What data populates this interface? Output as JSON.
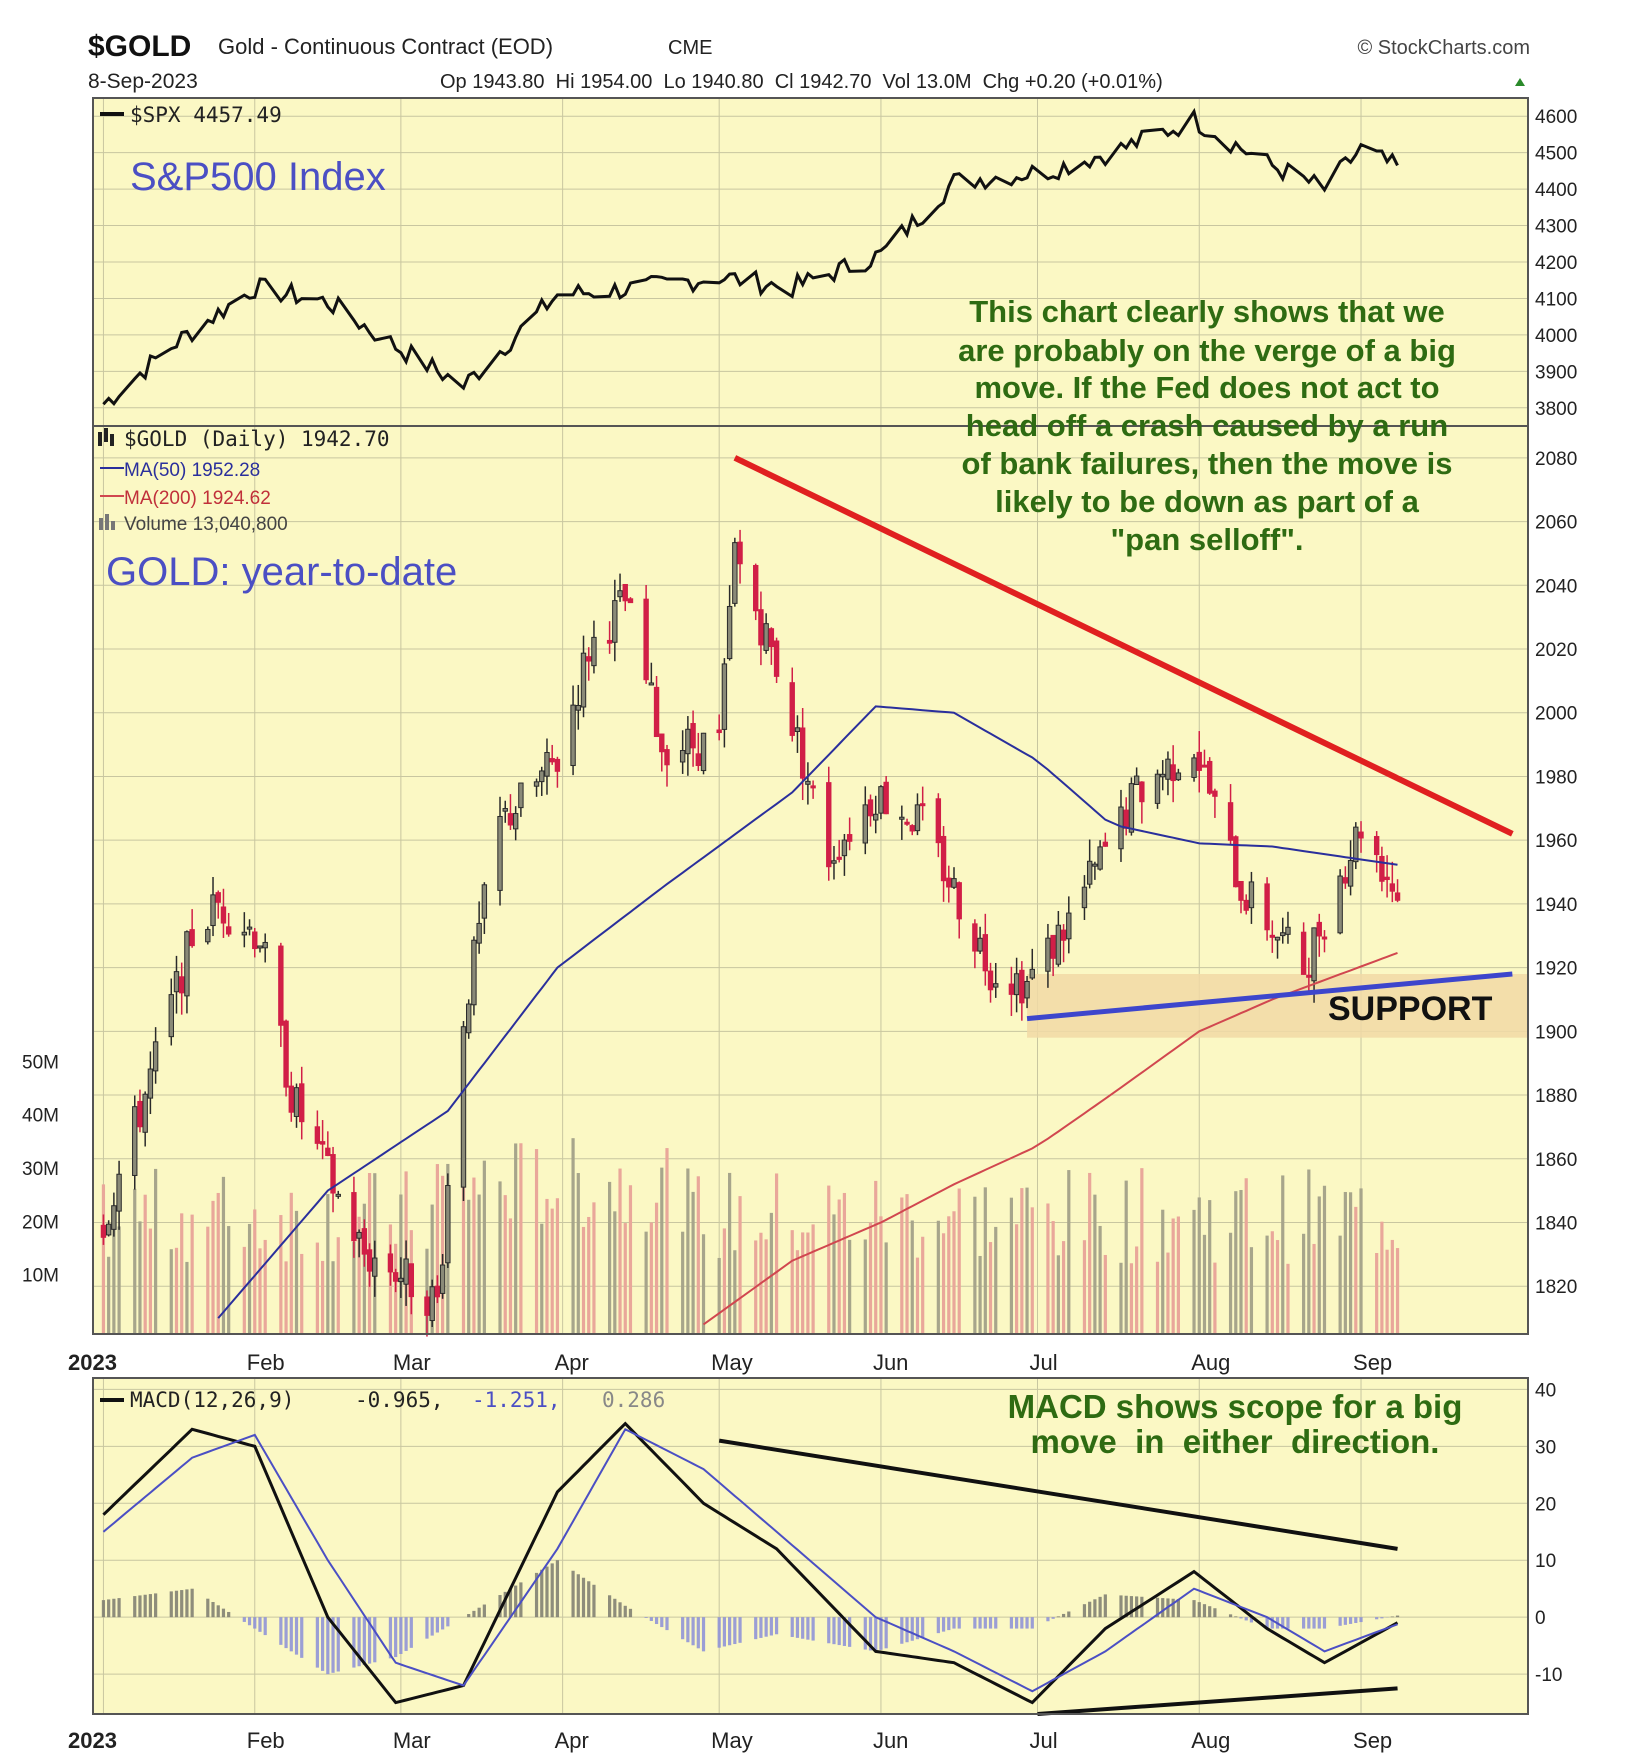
{
  "header": {
    "symbol": "$GOLD",
    "name": "Gold - Continuous Contract (EOD)",
    "exchange": "CME",
    "source": "© StockCharts.com",
    "date": "8-Sep-2023",
    "ohlc_text": "Op 1943.80  Hi 1954.00  Lo 1940.80  Cl 1942.70  Vol 13.0M  Chg +0.20 (+0.01%)"
  },
  "spx_panel": {
    "legend": "$SPX 4457.49",
    "title": "S&P500 Index",
    "ticks": [
      "4600",
      "4500",
      "4400",
      "4300",
      "4200",
      "4100",
      "4000",
      "3900",
      "3800"
    ]
  },
  "gold_panel": {
    "legend_main": "$GOLD (Daily) 1942.70",
    "legend_ma50": "MA(50) 1952.28",
    "legend_ma200": "MA(200) 1924.62",
    "legend_volume": "Volume 13,040,800",
    "title": "GOLD: year-to-date",
    "support_label": "SUPPORT",
    "comment_lines": [
      "This chart clearly shows that we",
      "are probably on the verge of a big",
      "move. If the Fed does not act to",
      "head off a crash caused by a run",
      "of bank failures, then the move is",
      "likely to be down as part of a",
      "\"pan selloff\"."
    ],
    "price_ticks": [
      "2080",
      "2060",
      "2040",
      "2020",
      "2000",
      "1980",
      "1960",
      "1940",
      "1920",
      "1900",
      "1880",
      "1860",
      "1840",
      "1820"
    ],
    "volume_ticks": [
      "50M",
      "40M",
      "30M",
      "20M",
      "10M"
    ]
  },
  "macd_panel": {
    "legend_label": "MACD(12,26,9)",
    "legend_macd": "-0.965,",
    "legend_signal": "-1.251,",
    "legend_hist": "0.286",
    "comment_lines": [
      "MACD shows scope for a big",
      "move  in  either  direction."
    ],
    "ticks": [
      "40",
      "30",
      "20",
      "10",
      "0",
      "-10"
    ]
  },
  "x_axis": {
    "labels": [
      "2023",
      "Feb",
      "Mar",
      "Apr",
      "May",
      "Jun",
      "Jul",
      "Aug",
      "Sep"
    ]
  },
  "colors": {
    "panel_bg": "#fbf8c4",
    "grid": "#c8c6a0",
    "spx_line": "#111111",
    "up_candle": "#2a2a2a",
    "down_candle": "#d11f47",
    "ma50": "#2a2f9c",
    "ma200": "#d1474f",
    "resistance": "#e02020",
    "support_line": "#3d46cc",
    "support_zone": "#f1d9a6",
    "title_blue": "#4b4fc4",
    "comment_green": "#2e6b12",
    "macd_hist": "#8a8ed8"
  },
  "chart_data": [
    {
      "type": "line",
      "title": "S&P500 Index",
      "series_label": "$SPX",
      "x": [
        "2023-01-03",
        "2023-01-17",
        "2023-02-01",
        "2023-02-15",
        "2023-03-01",
        "2023-03-13",
        "2023-03-31",
        "2023-04-17",
        "2023-05-01",
        "2023-05-15",
        "2023-06-01",
        "2023-06-15",
        "2023-07-03",
        "2023-07-17",
        "2023-07-31",
        "2023-08-14",
        "2023-08-25",
        "2023-09-01",
        "2023-09-08"
      ],
      "values": [
        3810,
        3980,
        4130,
        4090,
        3960,
        3860,
        4110,
        4130,
        4160,
        4130,
        4220,
        4420,
        4450,
        4510,
        4590,
        4470,
        4400,
        4510,
        4457
      ],
      "ylim": [
        3750,
        4650
      ]
    },
    {
      "type": "line",
      "title": "GOLD: year-to-date",
      "series_label": "$GOLD (Daily)",
      "x": [
        "2023-01-03",
        "2023-01-10",
        "2023-01-20",
        "2023-01-25",
        "2023-02-02",
        "2023-02-08",
        "2023-02-22",
        "2023-02-28",
        "2023-03-08",
        "2023-03-13",
        "2023-03-20",
        "2023-03-31",
        "2023-04-06",
        "2023-04-13",
        "2023-04-20",
        "2023-05-01",
        "2023-05-04",
        "2023-05-12",
        "2023-05-22",
        "2023-05-31",
        "2023-06-09",
        "2023-06-22",
        "2023-06-29",
        "2023-07-07",
        "2023-07-20",
        "2023-07-31",
        "2023-08-09",
        "2023-08-21",
        "2023-09-01",
        "2023-09-08"
      ],
      "values": [
        1840,
        1875,
        1930,
        1940,
        1930,
        1880,
        1830,
        1825,
        1815,
        1905,
        1965,
        1985,
        2020,
        2035,
        1990,
        1990,
        2050,
        2015,
        1955,
        1975,
        1965,
        1920,
        1915,
        1935,
        1975,
        1990,
        1945,
        1920,
        1965,
        1942.7
      ],
      "series": [
        {
          "name": "MA(50)",
          "x": [
            "2023-01-25",
            "2023-02-15",
            "2023-03-10",
            "2023-03-31",
            "2023-04-20",
            "2023-05-15",
            "2023-05-31",
            "2023-06-15",
            "2023-07-01",
            "2023-07-15",
            "2023-08-01",
            "2023-08-15",
            "2023-09-08"
          ],
          "values": [
            1810,
            1850,
            1875,
            1920,
            1945,
            1975,
            2002,
            2000,
            1985,
            1965,
            1959,
            1958,
            1952.28
          ]
        },
        {
          "name": "MA(200)",
          "x": [
            "2023-04-28",
            "2023-05-15",
            "2023-06-01",
            "2023-06-15",
            "2023-07-01",
            "2023-07-15",
            "2023-08-01",
            "2023-08-15",
            "2023-09-08"
          ],
          "values": [
            1808,
            1828,
            1840,
            1852,
            1864,
            1880,
            1900,
            1910,
            1924.62
          ]
        }
      ],
      "resistance_line": {
        "x": [
          "2023-05-04",
          "2023-09-30"
        ],
        "values": [
          2080,
          1962
        ]
      },
      "support_line": {
        "x": [
          "2023-06-29",
          "2023-09-30"
        ],
        "values": [
          1904,
          1918
        ]
      },
      "volume": {
        "label": "Volume",
        "last": 13040800,
        "unit": "M",
        "ticks": [
          10,
          20,
          30,
          40,
          50
        ]
      },
      "ylim": [
        1805,
        2090
      ]
    },
    {
      "type": "line",
      "title": "MACD(12,26,9)",
      "x": [
        "2023-01-03",
        "2023-01-20",
        "2023-02-01",
        "2023-02-15",
        "2023-02-28",
        "2023-03-13",
        "2023-03-31",
        "2023-04-13",
        "2023-04-28",
        "2023-05-12",
        "2023-05-31",
        "2023-06-15",
        "2023-06-30",
        "2023-07-14",
        "2023-07-31",
        "2023-08-14",
        "2023-08-25",
        "2023-09-08"
      ],
      "series": [
        {
          "name": "MACD",
          "values": [
            18,
            33,
            30,
            0,
            -15,
            -12,
            22,
            34,
            20,
            12,
            -6,
            -8,
            -15,
            -2,
            8,
            -2,
            -8,
            -0.965
          ]
        },
        {
          "name": "Signal",
          "values": [
            15,
            28,
            32,
            10,
            -8,
            -12,
            12,
            33,
            26,
            15,
            0,
            -6,
            -13,
            -6,
            5,
            0,
            -6,
            -1.251
          ]
        },
        {
          "name": "Histogram",
          "values": [
            3,
            5,
            -2,
            -10,
            -7,
            0,
            10,
            2,
            -6,
            -3,
            -6,
            -2,
            -2,
            4,
            3,
            -2,
            -2,
            0.286
          ]
        }
      ],
      "ylim": [
        -17,
        42
      ]
    }
  ]
}
